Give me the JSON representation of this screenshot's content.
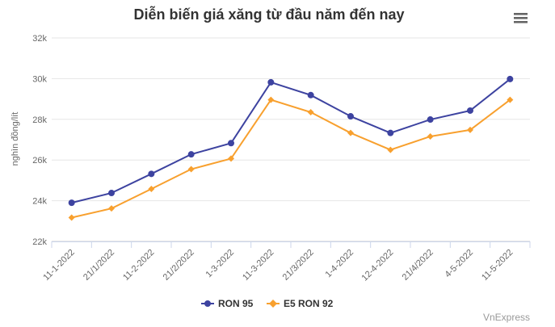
{
  "chart_data": {
    "type": "line",
    "title": "Diễn biến giá xăng từ đầu năm đến nay",
    "ylabel": "nghìn đồng/lít",
    "xlabel": "",
    "categories": [
      "11-1-2022",
      "21/1/2022",
      "11-2-2022",
      "21/2/2022",
      "1-3-2022",
      "11-3-2022",
      "21/3/2022",
      "1-4-2022",
      "12-4-2022",
      "21/4/2022",
      "4-5-2022",
      "11-5-2022"
    ],
    "ylim": [
      22000,
      32000
    ],
    "yticks": [
      22000,
      24000,
      26000,
      28000,
      30000,
      32000
    ],
    "ytick_labels": [
      "22k",
      "24k",
      "26k",
      "28k",
      "30k",
      "32k"
    ],
    "grid": true,
    "legend_position": "bottom",
    "series": [
      {
        "name": "RON 95",
        "color": "#3d43a0",
        "marker": "circle",
        "values": [
          23900,
          24380,
          25320,
          26280,
          26830,
          29820,
          29190,
          28150,
          27330,
          27990,
          28430,
          29980
        ]
      },
      {
        "name": "E5 RON 92",
        "color": "#f8a02e",
        "marker": "diamond",
        "values": [
          23170,
          23620,
          24580,
          25550,
          26070,
          28960,
          28350,
          27330,
          26500,
          27160,
          27480,
          28960
        ]
      }
    ]
  },
  "credit": "VnExpress",
  "menu_icon": "hamburger-menu-icon"
}
